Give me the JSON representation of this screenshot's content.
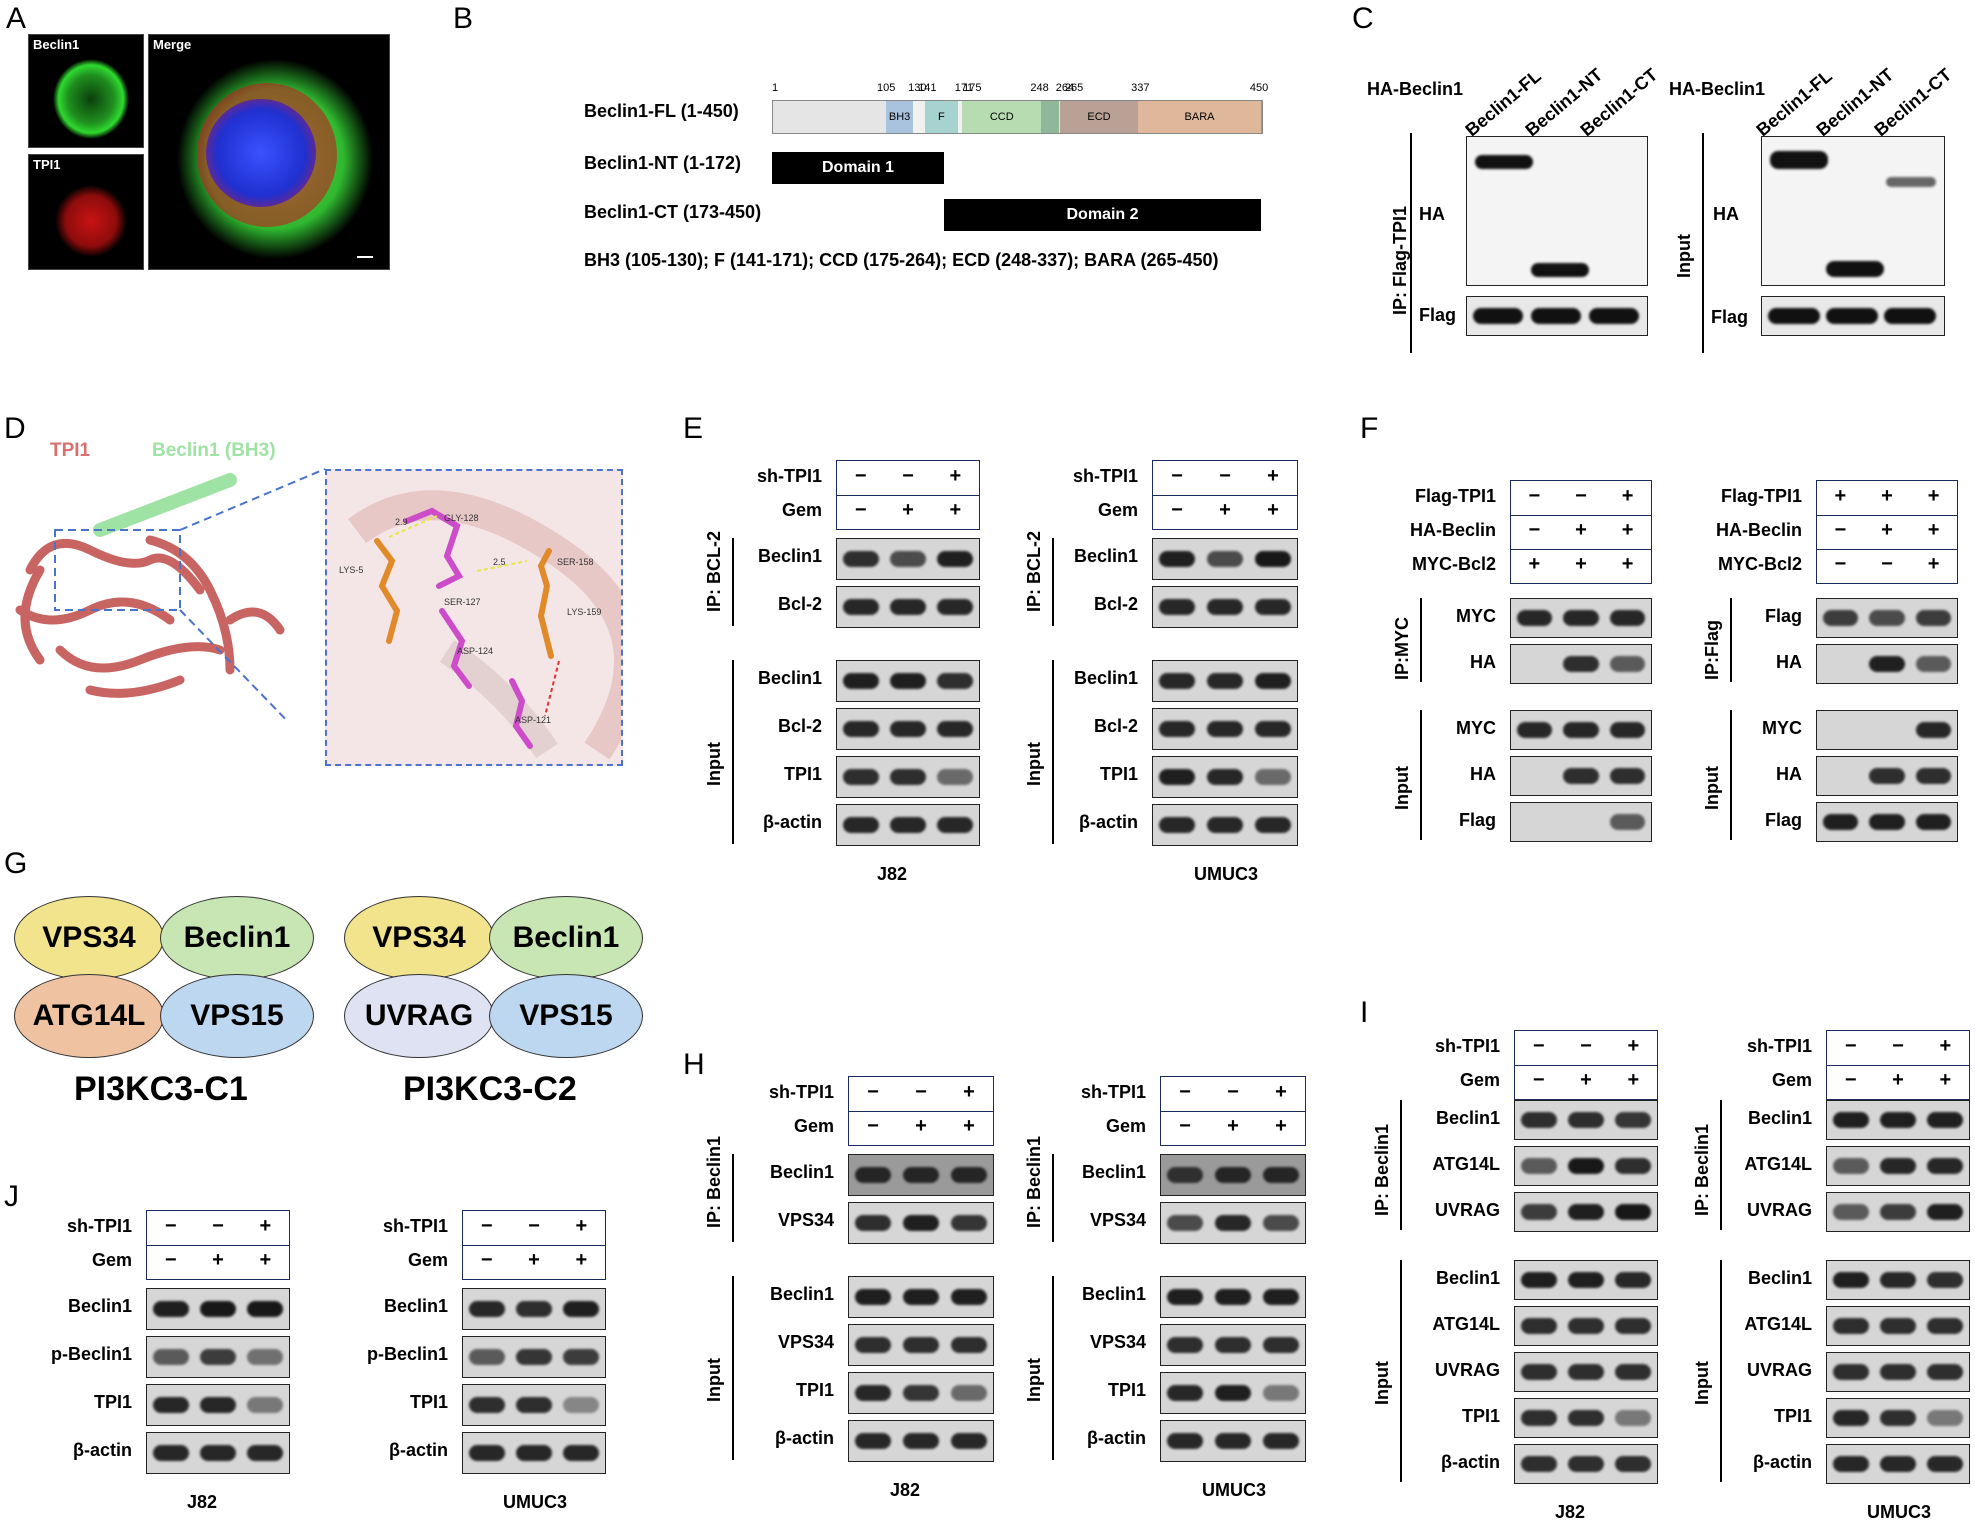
{
  "panels": {
    "A": "A",
    "B": "B",
    "C": "C",
    "D": "D",
    "E": "E",
    "F": "F",
    "G": "G",
    "H": "H",
    "I": "I",
    "J": "J"
  },
  "panelA": {
    "beclin1": "Beclin1",
    "tpi1": "TPI1",
    "merge": "Merge",
    "colors": {
      "beclin1": "#2fd92f",
      "tpi1": "#e01a1a",
      "dapi": "#2a3cff"
    }
  },
  "panelB": {
    "fl_label": "Beclin1-FL (1-450)",
    "nt_label": "Beclin1-NT (1-172)",
    "ct_label": "Beclin1-CT (173-450)",
    "domain1": "Domain 1",
    "domain2": "Domain 2",
    "legend": "BH3 (105-130); F (141-171); CCD (175-264); ECD (248-337); BARA (265-450)",
    "ticks": [
      "1",
      "105",
      "130",
      "141",
      "171",
      "175",
      "248",
      "264",
      "265",
      "337",
      "450"
    ],
    "segments": [
      {
        "label": "",
        "color": "#e5e5e5"
      },
      {
        "label": "BH3",
        "color": "#a9c3df"
      },
      {
        "label": "",
        "color": "#f1f1f1"
      },
      {
        "label": "F",
        "color": "#a6d3d0"
      },
      {
        "label": "",
        "color": "#f1f1f1"
      },
      {
        "label": "CCD",
        "color": "#b7dcb1"
      },
      {
        "label": "",
        "color": "#8fb79a"
      },
      {
        "label": "",
        "color": "#e5e5e5"
      },
      {
        "label": "ECD",
        "color": "#b9a295"
      },
      {
        "label": "BARA",
        "color": "#dfb89b"
      }
    ]
  },
  "panelC": {
    "ha_beclin": "HA-Beclin1",
    "lanes": [
      "Beclin1-FL",
      "Beclin1-NT",
      "Beclin1-CT"
    ],
    "ip": "IP: Flag-TPI1",
    "input": "Input",
    "ha": "HA",
    "flag": "Flag"
  },
  "panelD": {
    "tpi1": "TPI1",
    "beclin_bh3": "Beclin1 (BH3)",
    "residues": [
      "GLY-128",
      "LYS-5",
      "SER-127",
      "SER-158",
      "LYS-159",
      "ASP-124",
      "ASP-121"
    ],
    "distances": [
      "2.9",
      "2.5"
    ]
  },
  "panelE": {
    "sh": "sh-TPI1",
    "gem": "Gem",
    "sh_signs": [
      "−",
      "−",
      "+"
    ],
    "gem_signs": [
      "−",
      "+",
      "+"
    ],
    "ip": "IP: BCL-2",
    "input": "Input",
    "rows_ip": [
      "Beclin1",
      "Bcl-2"
    ],
    "rows_input": [
      "Beclin1",
      "Bcl-2",
      "TPI1",
      "β-actin"
    ],
    "cells": [
      "J82",
      "UMUC3"
    ]
  },
  "panelF": {
    "flag_tpi1": "Flag-TPI1",
    "ha_beclin": "HA-Beclin",
    "myc_bcl2": "MYC-Bcl2",
    "left_signs": {
      "flag": [
        "−",
        "−",
        "+"
      ],
      "ha": [
        "−",
        "+",
        "+"
      ],
      "myc": [
        "+",
        "+",
        "+"
      ]
    },
    "right_signs": {
      "flag": [
        "+",
        "+",
        "+"
      ],
      "ha": [
        "−",
        "+",
        "+"
      ],
      "myc": [
        "−",
        "−",
        "+"
      ]
    },
    "ip_myc": "IP:MYC",
    "ip_flag": "IP:Flag",
    "input": "Input",
    "left_ip_rows": [
      "MYC",
      "HA"
    ],
    "right_ip_rows": [
      "Flag",
      "HA"
    ],
    "left_input_rows": [
      "MYC",
      "HA",
      "Flag"
    ],
    "right_input_rows": [
      "MYC",
      "HA",
      "Flag"
    ]
  },
  "panelG": {
    "c1": {
      "a": "VPS34",
      "b": "Beclin1",
      "c": "ATG14L",
      "d": "VPS15",
      "title": "PI3KC3-C1"
    },
    "c2": {
      "a": "VPS34",
      "b": "Beclin1",
      "c": "UVRAG",
      "d": "VPS15",
      "title": "PI3KC3-C2"
    },
    "colors": {
      "vps34": "#f1e48d",
      "beclin1": "#c8e6b4",
      "atg14l": "#efc3a2",
      "vps15": "#bcd7ef",
      "uvrag": "#dfe2f2"
    }
  },
  "panelH": {
    "sh": "sh-TPI1",
    "gem": "Gem",
    "ip": "IP: Beclin1",
    "input": "Input",
    "rows_ip": [
      "Beclin1",
      "VPS34"
    ],
    "rows_input": [
      "Beclin1",
      "VPS34",
      "TPI1",
      "β-actin"
    ],
    "cells": [
      "J82",
      "UMUC3"
    ]
  },
  "panelI": {
    "sh": "sh-TPI1",
    "gem": "Gem",
    "ip": "IP: Beclin1",
    "input": "Input",
    "rows_ip": [
      "Beclin1",
      "ATG14L",
      "UVRAG"
    ],
    "rows_input": [
      "Beclin1",
      "ATG14L",
      "UVRAG",
      "TPI1",
      "β-actin"
    ],
    "cells": [
      "J82",
      "UMUC3"
    ]
  },
  "panelJ": {
    "sh": "sh-TPI1",
    "gem": "Gem",
    "rows": [
      "Beclin1",
      "p-Beclin1",
      "TPI1",
      "β-actin"
    ],
    "cells": [
      "J82",
      "UMUC3"
    ]
  }
}
